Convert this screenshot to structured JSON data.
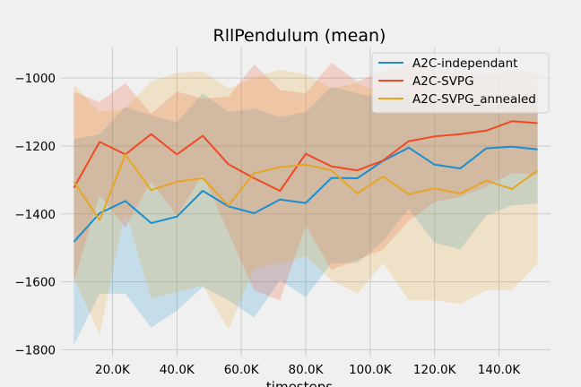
{
  "chart_data": {
    "type": "line",
    "title": "RllPendulum (mean)",
    "xlabel": "timesteps",
    "ylabel": "",
    "xlim": [
      4000,
      156000
    ],
    "ylim": [
      -1820,
      -910
    ],
    "xticks": [
      20000,
      40000,
      60000,
      80000,
      100000,
      120000,
      140000
    ],
    "xtick_labels": [
      "20.0K",
      "40.0K",
      "60.0K",
      "80.0K",
      "100.0K",
      "120.0K",
      "140.0K"
    ],
    "yticks": [
      -1800,
      -1600,
      -1400,
      -1200,
      -1000
    ],
    "ytick_labels": [
      "−1800",
      "−1600",
      "−1400",
      "−1200",
      "−1000"
    ],
    "grid": true,
    "legend_position": "top-right",
    "x": [
      8000,
      16000,
      24000,
      32000,
      40000,
      48000,
      56000,
      64000,
      72000,
      80000,
      88000,
      96000,
      104000,
      112000,
      120000,
      128000,
      136000,
      144000,
      152000
    ],
    "series": [
      {
        "name": "A2C-independant",
        "color": "#1a8fcf",
        "values": [
          -1482,
          -1398,
          -1362,
          -1427,
          -1408,
          -1332,
          -1378,
          -1398,
          -1358,
          -1368,
          -1294,
          -1295,
          -1244,
          -1205,
          -1255,
          -1266,
          -1207,
          -1202,
          -1210
        ],
        "upper": [
          -1180,
          -1165,
          -1085,
          -1110,
          -1130,
          -1045,
          -1100,
          -1090,
          -1115,
          -1100,
          -1025,
          -1045,
          -1060,
          -1050,
          -1060,
          -1070,
          -1065,
          -1060,
          -1060
        ],
        "lower": [
          -1785,
          -1635,
          -1635,
          -1735,
          -1685,
          -1615,
          -1655,
          -1705,
          -1595,
          -1645,
          -1545,
          -1545,
          -1480,
          -1385,
          -1485,
          -1505,
          -1405,
          -1375,
          -1370
        ]
      },
      {
        "name": "A2C-SVPG",
        "color": "#f04a25",
        "values": [
          -1323,
          -1188,
          -1225,
          -1165,
          -1225,
          -1170,
          -1254,
          -1295,
          -1332,
          -1223,
          -1260,
          -1272,
          -1243,
          -1186,
          -1172,
          -1165,
          -1155,
          -1127,
          -1133
        ],
        "upper": [
          -1040,
          -1070,
          -1015,
          -1105,
          -1040,
          -1060,
          -1055,
          -960,
          -1035,
          -1045,
          -955,
          -1010,
          -980,
          -960,
          -975,
          -980,
          -990,
          -975,
          -985
        ],
        "lower": [
          -1600,
          -1345,
          -1440,
          -1305,
          -1405,
          -1285,
          -1455,
          -1625,
          -1655,
          -1435,
          -1565,
          -1535,
          -1505,
          -1420,
          -1365,
          -1350,
          -1320,
          -1280,
          -1285
        ]
      },
      {
        "name": "A2C-SVPG_annealed",
        "color": "#e6a623",
        "values": [
          -1305,
          -1418,
          -1225,
          -1330,
          -1305,
          -1295,
          -1375,
          -1280,
          -1262,
          -1255,
          -1272,
          -1340,
          -1290,
          -1342,
          -1325,
          -1340,
          -1302,
          -1327,
          -1272
        ],
        "upper": [
          -1020,
          -1100,
          -1090,
          -1010,
          -985,
          -980,
          -1030,
          -1000,
          -975,
          -990,
          -1030,
          -1015,
          -1045,
          -1045,
          -1065,
          -1065,
          -1060,
          -1065,
          -1030
        ],
        "lower": [
          -1590,
          -1755,
          -1390,
          -1650,
          -1630,
          -1610,
          -1740,
          -1560,
          -1545,
          -1525,
          -1595,
          -1635,
          -1545,
          -1655,
          -1655,
          -1665,
          -1625,
          -1625,
          -1545
        ]
      }
    ]
  }
}
